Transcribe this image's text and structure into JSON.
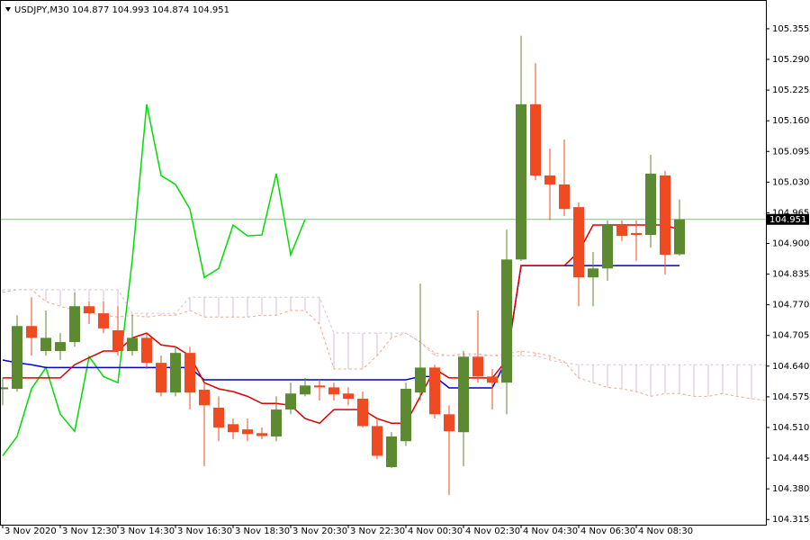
{
  "chart_data": {
    "type": "candlestick",
    "title": "USDJPY,M30",
    "categories": [
      "3 Nov 2020",
      null,
      null,
      null,
      "3 Nov 12:30",
      null,
      null,
      null,
      "3 Nov 14:30",
      null,
      null,
      null,
      "3 Nov 16:30",
      null,
      null,
      null,
      "3 Nov 18:30",
      null,
      null,
      null,
      "3 Nov 20:30",
      null,
      null,
      null,
      "3 Nov 22:30",
      null,
      null,
      null,
      "4 Nov 00:30",
      null,
      null,
      null,
      "4 Nov 02:30",
      null,
      null,
      null,
      "4 Nov 04:30",
      null,
      null,
      null,
      "4 Nov 06:30",
      null,
      null,
      null,
      "4 Nov 08:30",
      null,
      null,
      null,
      null,
      null,
      null,
      null,
      null,
      null
    ],
    "open": [
      104.592,
      104.592,
      104.725,
      104.672,
      104.672,
      104.691,
      104.767,
      104.752,
      104.716,
      104.672,
      104.7,
      104.647,
      104.584,
      104.668,
      104.59,
      104.552,
      104.517,
      104.506,
      104.498,
      104.491,
      104.548,
      104.58,
      104.599,
      104.595,
      104.582,
      104.571,
      104.513,
      104.426,
      104.481,
      104.584,
      104.637,
      104.538,
      104.5,
      104.66,
      104.618,
      104.605,
      104.866,
      105.195,
      105.044,
      105.025,
      104.977,
      104.828,
      104.847,
      104.939,
      104.922,
      104.918,
      105.044,
      104.877,
      null,
      null,
      null,
      null,
      null,
      null
    ],
    "high": [
      104.615,
      104.748,
      104.786,
      104.758,
      104.71,
      104.796,
      104.777,
      104.777,
      104.767,
      104.748,
      104.71,
      104.662,
      104.681,
      104.681,
      104.605,
      104.576,
      104.529,
      104.529,
      104.51,
      104.576,
      104.605,
      104.615,
      104.611,
      104.605,
      104.595,
      104.586,
      104.529,
      104.5,
      104.605,
      104.815,
      104.643,
      104.557,
      104.672,
      104.758,
      104.634,
      104.929,
      105.34,
      105.282,
      105.101,
      105.12,
      104.987,
      104.882,
      104.949,
      104.949,
      104.949,
      105.088,
      105.054,
      104.993,
      null,
      null,
      null,
      null,
      null,
      null
    ],
    "low": [
      104.557,
      104.586,
      104.662,
      104.662,
      104.653,
      104.681,
      104.729,
      104.71,
      104.662,
      104.662,
      104.634,
      104.576,
      104.576,
      104.548,
      104.428,
      104.481,
      104.485,
      104.481,
      104.485,
      104.481,
      104.538,
      104.576,
      104.567,
      104.567,
      104.557,
      104.51,
      104.443,
      104.424,
      104.471,
      104.567,
      104.529,
      104.367,
      104.428,
      104.605,
      104.548,
      104.538,
      104.863,
      105.034,
      104.949,
      104.958,
      104.767,
      104.767,
      104.821,
      104.905,
      104.863,
      104.891,
      104.834,
      104.874,
      null,
      null,
      null,
      null,
      null,
      null
    ],
    "close": [
      104.595,
      104.725,
      104.7,
      104.7,
      104.691,
      104.767,
      104.752,
      104.72,
      104.672,
      104.7,
      104.647,
      104.584,
      104.668,
      104.584,
      104.557,
      104.51,
      104.5,
      104.496,
      104.492,
      104.548,
      104.582,
      104.599,
      104.595,
      104.58,
      104.571,
      104.513,
      104.45,
      104.491,
      104.592,
      104.637,
      104.538,
      104.502,
      104.66,
      104.618,
      104.605,
      104.866,
      105.195,
      105.044,
      105.025,
      104.973,
      104.828,
      104.847,
      104.939,
      104.916,
      104.918,
      105.048,
      104.876,
      104.951,
      null,
      null,
      null,
      null,
      null,
      null
    ],
    "up_color": "#5b8a30",
    "down_color": "#f04a23",
    "series": [
      {
        "color": "#00dd00",
        "style": "solid",
        "values": [
          104.45,
          104.491,
          104.592,
          104.637,
          104.538,
          104.502,
          104.66,
          104.618,
          104.605,
          104.866,
          105.195,
          105.044,
          105.025,
          104.973,
          104.828,
          104.847,
          104.939,
          104.916,
          104.918,
          105.048,
          104.876,
          104.951,
          null,
          null,
          null,
          null,
          null,
          null,
          null,
          null,
          null,
          null,
          null,
          null,
          null,
          null,
          null,
          null,
          null,
          null,
          null,
          null,
          null,
          null,
          null,
          null,
          null,
          null,
          null,
          null,
          null,
          null,
          null,
          null
        ]
      },
      {
        "color": "#0000cc",
        "style": "solid",
        "values": [
          104.653,
          104.647,
          104.643,
          104.637,
          104.637,
          104.637,
          104.637,
          104.637,
          104.637,
          104.637,
          104.637,
          104.637,
          104.637,
          104.637,
          104.611,
          104.611,
          104.611,
          104.611,
          104.611,
          104.611,
          104.611,
          104.611,
          104.611,
          104.611,
          104.611,
          104.611,
          104.611,
          104.611,
          104.611,
          104.618,
          104.618,
          104.594,
          104.594,
          104.594,
          104.594,
          104.653,
          104.853,
          104.853,
          104.853,
          104.853,
          104.853,
          104.853,
          104.853,
          104.853,
          104.853,
          104.853,
          104.853,
          104.853,
          null,
          null,
          null,
          null,
          null,
          null
        ]
      },
      {
        "color": "#dd0000",
        "style": "solid",
        "values": [
          104.615,
          104.615,
          104.615,
          104.615,
          104.615,
          104.643,
          104.658,
          104.672,
          104.672,
          104.7,
          104.71,
          104.685,
          104.681,
          104.662,
          104.605,
          104.592,
          104.586,
          104.576,
          104.561,
          104.561,
          104.557,
          104.529,
          104.519,
          104.548,
          104.548,
          104.548,
          104.529,
          104.519,
          104.519,
          104.576,
          104.634,
          104.615,
          104.615,
          104.615,
          104.615,
          104.653,
          104.853,
          104.853,
          104.853,
          104.853,
          104.882,
          104.939,
          104.939,
          104.939,
          104.939,
          104.939,
          104.939,
          104.929,
          null,
          null,
          null,
          null,
          null,
          null
        ]
      },
      {
        "color": "#f4a582",
        "style": "dashed",
        "values": [
          104.796,
          104.802,
          104.802,
          104.777,
          104.767,
          104.758,
          104.752,
          104.748,
          104.744,
          104.748,
          104.744,
          104.748,
          104.748,
          104.758,
          104.744,
          104.744,
          104.744,
          104.744,
          104.748,
          104.748,
          104.758,
          104.758,
          104.729,
          104.634,
          104.634,
          104.634,
          104.662,
          104.7,
          104.71,
          104.691,
          104.668,
          104.662,
          104.666,
          104.666,
          104.662,
          104.666,
          104.672,
          104.668,
          104.662,
          104.649,
          104.615,
          104.605,
          104.595,
          104.592,
          104.586,
          104.576,
          104.582,
          104.582,
          104.576,
          104.576,
          104.582,
          104.576,
          104.571,
          104.567
        ]
      },
      {
        "color": "#d8bfd8",
        "style": "dashed",
        "values": [
          104.802,
          104.802,
          104.802,
          104.802,
          104.802,
          104.802,
          104.802,
          104.802,
          104.802,
          104.752,
          104.752,
          104.752,
          104.752,
          104.786,
          104.786,
          104.786,
          104.786,
          104.786,
          104.786,
          104.786,
          104.786,
          104.786,
          104.786,
          104.71,
          104.71,
          104.71,
          104.71,
          104.71,
          104.71,
          104.691,
          104.662,
          104.662,
          104.662,
          104.662,
          104.662,
          104.662,
          104.662,
          104.662,
          104.653,
          104.647,
          104.643,
          104.643,
          104.643,
          104.643,
          104.643,
          104.643,
          104.643,
          104.643,
          104.643,
          104.643,
          104.643,
          104.643,
          104.643,
          104.643
        ]
      }
    ],
    "cloud": true,
    "price_line_color": "#7fbf7f",
    "ylim": [
      104.304,
      105.414
    ],
    "yticks": [
      105.355,
      {
        "value": 105.29,
        "label": "105.290"
      },
      105.225,
      {
        "value": 105.16,
        "label": "105.160"
      },
      105.095,
      {
        "value": 105.03,
        "label": "105.030"
      },
      104.965,
      {
        "value": 104.9,
        "label": "104.900"
      },
      104.835,
      {
        "value": 104.77,
        "label": "104.770"
      },
      104.705,
      {
        "value": 104.64,
        "label": "104.640"
      },
      104.575,
      {
        "value": 104.51,
        "label": "104.510"
      },
      104.445,
      {
        "value": 104.38,
        "label": "104.380"
      },
      104.315
    ]
  }
}
